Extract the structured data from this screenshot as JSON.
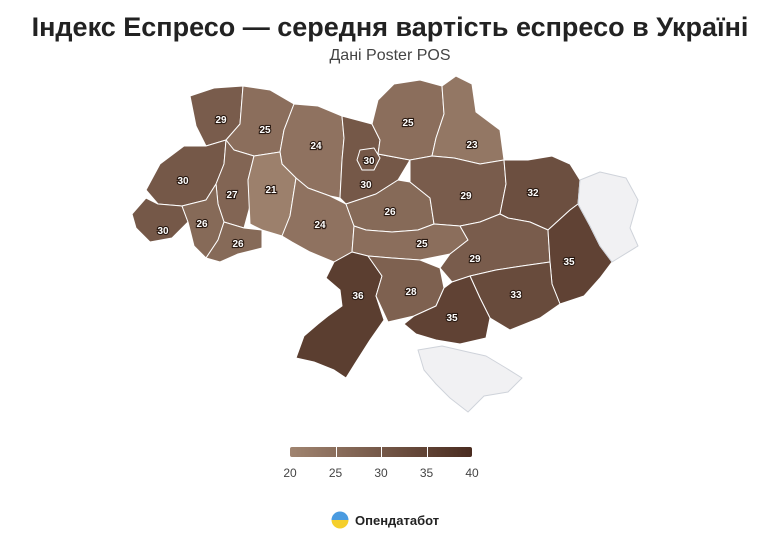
{
  "header": {
    "title": "Індекс Еспресо — середня вартість еспресо в Україні",
    "subtitle": "Дані Poster POS"
  },
  "colors": {
    "low": "#a08470",
    "high": "#4a2c20",
    "nodata": "#f1f1f3",
    "border": "#ffffff"
  },
  "legend": {
    "min": 20,
    "max": 40,
    "ticks": [
      "20",
      "25",
      "30",
      "35",
      "40"
    ]
  },
  "regions": [
    {
      "id": "volyn",
      "value": 29,
      "label": "29"
    },
    {
      "id": "rivne",
      "value": 25,
      "label": "25"
    },
    {
      "id": "zhytomyr",
      "value": 24,
      "label": "24"
    },
    {
      "id": "kyiv-oblast",
      "value": 30,
      "label": "30"
    },
    {
      "id": "kyiv-city",
      "value": 30,
      "label": "30"
    },
    {
      "id": "chernihiv",
      "value": 25,
      "label": "25"
    },
    {
      "id": "sumy",
      "value": 23,
      "label": "23"
    },
    {
      "id": "lviv",
      "value": 30,
      "label": "30"
    },
    {
      "id": "ternopil",
      "value": 27,
      "label": "27"
    },
    {
      "id": "khmelnytskyi",
      "value": 21,
      "label": "21"
    },
    {
      "id": "vinnytsia",
      "value": 24,
      "label": "24"
    },
    {
      "id": "cherkasy",
      "value": 26,
      "label": "26"
    },
    {
      "id": "poltava",
      "value": 29,
      "label": "29"
    },
    {
      "id": "kharkiv",
      "value": 32,
      "label": "32"
    },
    {
      "id": "zakarpattia",
      "value": 30,
      "label": "30"
    },
    {
      "id": "ivano-frankivsk",
      "value": 26,
      "label": "26"
    },
    {
      "id": "chernivtsi",
      "value": 26,
      "label": "26"
    },
    {
      "id": "kirovohrad",
      "value": 25,
      "label": "25"
    },
    {
      "id": "dnipropetrovsk",
      "value": 29,
      "label": "29"
    },
    {
      "id": "donetsk",
      "value": 35,
      "label": "35"
    },
    {
      "id": "odesa",
      "value": 36,
      "label": "36"
    },
    {
      "id": "mykolaiv",
      "value": 28,
      "label": "28"
    },
    {
      "id": "zaporizhzhia",
      "value": 33,
      "label": "33"
    },
    {
      "id": "kherson",
      "value": 35,
      "label": "35"
    },
    {
      "id": "luhansk",
      "value": null,
      "label": ""
    },
    {
      "id": "crimea",
      "value": null,
      "label": ""
    }
  ],
  "brand": {
    "name": "Опендатабот",
    "logo_icon": "opendatabot-logo-icon"
  }
}
